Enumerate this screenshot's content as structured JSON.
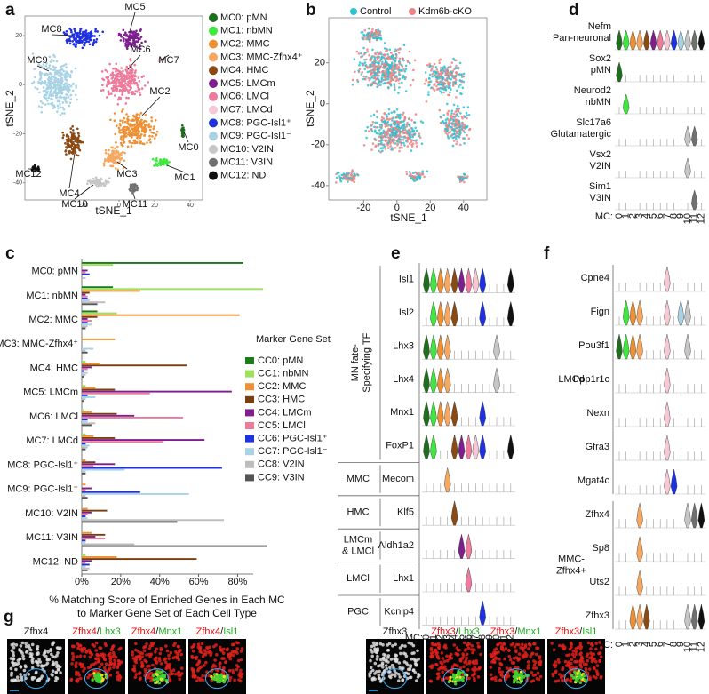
{
  "a": {
    "label": "a",
    "xlabel": "tSNE_1",
    "ylabel": "tSNE_2",
    "xlim": [
      -53,
      47
    ],
    "ylim": [
      -47,
      28
    ],
    "xticks": [
      -20,
      0,
      20,
      40
    ],
    "yticks": [
      20,
      0,
      -20,
      -40
    ],
    "clusters": [
      "MC8",
      "MC5",
      "MC6",
      "MC7",
      "MC9",
      "MC2",
      "MC0",
      "MC1",
      "MC3",
      "MC12",
      "MC4",
      "MC10",
      "MC11"
    ],
    "legend": [
      {
        "name": "MC0: pMN",
        "color": "#1d6e1d"
      },
      {
        "name": "MC1: nbMN",
        "color": "#3fe83f"
      },
      {
        "name": "MC2: MMC",
        "color": "#ee9034"
      },
      {
        "name": "MC3: MMC-Zfhx4⁺",
        "color": "#f4a862"
      },
      {
        "name": "MC4: HMC",
        "color": "#8a4a14"
      },
      {
        "name": "MC5: LMCm",
        "color": "#7d1f8e"
      },
      {
        "name": "MC6: LMCl",
        "color": "#ec7b9c"
      },
      {
        "name": "MC7: LMCd",
        "color": "#f6c8d4"
      },
      {
        "name": "MC8: PGC-Isl1⁺",
        "color": "#1f30e0"
      },
      {
        "name": "MC9: PGC-Isl1⁻",
        "color": "#a9d3e4"
      },
      {
        "name": "MC10: V2IN",
        "color": "#c6c6c6"
      },
      {
        "name": "MC11: V3IN",
        "color": "#707070"
      },
      {
        "name": "MC12: ND",
        "color": "#111111"
      }
    ]
  },
  "b": {
    "label": "b",
    "xlabel": "tSNE_1",
    "ylabel": "tSNE_2",
    "xlim": [
      -41,
      54
    ],
    "ylim": [
      -47,
      42
    ],
    "xticks": [
      -20,
      0,
      20,
      40
    ],
    "yticks": [
      20,
      0,
      -20,
      -40
    ],
    "legend": [
      {
        "name": "Control",
        "color": "#2cc3d3"
      },
      {
        "name": "Kdm6b-cKO",
        "color": "#f08282"
      }
    ]
  },
  "chart_data": {
    "type": "bar",
    "label": "c",
    "orientation": "horizontal",
    "categories": [
      "MC0: pMN",
      "MC1: nbMN",
      "MC2: MMC",
      "MC3: MMC-Zfhx4⁺",
      "MC4: HMC",
      "MC5: LMCm",
      "MC6: LMCl",
      "MC7: LMCd",
      "MC8: PGC-Isl1⁺",
      "MC9: PGC-Isl1⁻",
      "MC10: V2IN",
      "MC11: V3IN",
      "MC12: ND"
    ],
    "legend_title": "Marker Gene Set",
    "xlabel": [
      "% Matching Score of Enriched Genes in Each MC",
      "to Marker Gene Set of Each Cell Type"
    ],
    "xlim": [
      0,
      88
    ],
    "xticks": [
      {
        "value": 0,
        "label": "0%"
      },
      {
        "value": 20,
        "label": "20%"
      },
      {
        "value": 40,
        "label": "40%"
      },
      {
        "value": 60,
        "label": "60%"
      },
      {
        "value": 80,
        "label": "80%"
      }
    ],
    "series": [
      {
        "name": "CC0: pMN",
        "color": "#1d7a1d",
        "values": [
          83,
          16,
          8,
          0,
          0,
          0,
          0,
          0,
          0,
          0,
          0,
          0,
          0
        ]
      },
      {
        "name": "CC1: nbMN",
        "color": "#9fe060",
        "values": [
          16,
          93,
          18,
          0,
          2,
          2,
          1,
          2,
          0,
          0,
          0,
          0,
          2
        ]
      },
      {
        "name": "CC2: MMC",
        "color": "#ee9034",
        "values": [
          0,
          30,
          81,
          17,
          9,
          7,
          5,
          6,
          2,
          2,
          3,
          5,
          18
        ]
      },
      {
        "name": "CC3: HMC",
        "color": "#7a3f10",
        "values": [
          0,
          4,
          8,
          0,
          54,
          17,
          18,
          17,
          7,
          0,
          13,
          12,
          59
        ]
      },
      {
        "name": "CC4: LMCm",
        "color": "#7d1f8e",
        "values": [
          3,
          2,
          3,
          0,
          5,
          77,
          27,
          63,
          17,
          5,
          5,
          7,
          5
        ]
      },
      {
        "name": "CC5: LMCl",
        "color": "#ec7b9c",
        "values": [
          2,
          3,
          5,
          0,
          3,
          35,
          52,
          42,
          6,
          2,
          3,
          12,
          2
        ]
      },
      {
        "name": "CC6: PGC-Isl1⁺",
        "color": "#1f30e0",
        "values": [
          4,
          3,
          3,
          0,
          1,
          3,
          3,
          2,
          72,
          30,
          2,
          2,
          4
        ]
      },
      {
        "name": "CC7: PGC-Isl1⁻",
        "color": "#a9d3e4",
        "values": [
          0,
          4,
          5,
          6,
          3,
          7,
          3,
          4,
          22,
          55,
          3,
          2,
          2
        ]
      },
      {
        "name": "CC8: V2IN",
        "color": "#bdbdbd",
        "values": [
          2,
          12,
          3,
          2,
          2,
          2,
          7,
          3,
          2,
          2,
          73,
          27,
          4
        ]
      },
      {
        "name": "CC9: V3IN",
        "color": "#555555",
        "values": [
          0,
          8,
          2,
          3,
          1,
          1,
          5,
          2,
          2,
          3,
          49,
          95,
          3
        ]
      }
    ]
  },
  "d": {
    "label": "d",
    "mc_label": "MC:",
    "mc": [
      0,
      1,
      2,
      3,
      4,
      5,
      6,
      7,
      8,
      9,
      10,
      11,
      12
    ],
    "rows": [
      {
        "gene": "Nefm",
        "type": "Pan-neuronal"
      },
      {
        "gene": "Sox2",
        "type": "pMN"
      },
      {
        "gene": "Neurod2",
        "type": "nbMN"
      },
      {
        "gene": "Slc17a6",
        "type": "Glutamatergic"
      },
      {
        "gene": "Vsx2",
        "type": "V2IN"
      },
      {
        "gene": "Sim1",
        "type": "V3IN"
      }
    ]
  },
  "e": {
    "label": "e",
    "mc_label": "MC:",
    "mc": [
      0,
      1,
      2,
      3,
      4,
      5,
      6,
      7,
      8,
      9,
      10,
      11,
      12
    ],
    "groups": [
      {
        "name": [
          "MN fate-",
          "Specifying TF"
        ],
        "genes": [
          "Isl1",
          "Isl2",
          "Lhx3",
          "Lhx4",
          "Mnx1",
          "FoxP1"
        ]
      },
      {
        "name": [
          "MMC"
        ],
        "genes": [
          "Mecom"
        ]
      },
      {
        "name": [
          "HMC"
        ],
        "genes": [
          "Klf5"
        ]
      },
      {
        "name": [
          "LMCm",
          "& LMCl"
        ],
        "genes": [
          "Aldh1a2"
        ]
      },
      {
        "name": [
          "LMCl"
        ],
        "genes": [
          "Lhx1"
        ]
      },
      {
        "name": [
          "PGC"
        ],
        "genes": [
          "Kcnip4"
        ]
      }
    ]
  },
  "f": {
    "label": "f",
    "mc_label": "MC:",
    "mc": [
      0,
      1,
      2,
      3,
      4,
      5,
      6,
      7,
      8,
      9,
      10,
      11,
      12
    ],
    "groups": [
      {
        "name": [
          "LMCd"
        ],
        "genes": [
          "Cpne4",
          "Fign",
          "Pou3f1",
          "Ppp1r1c",
          "Nexn",
          "Gfra3",
          "Mgat4c"
        ]
      },
      {
        "name": [
          "MMC-",
          "Zfhx4+"
        ],
        "genes": [
          "Zfhx4",
          "Sp8",
          "Uts2",
          "Zfhx3"
        ]
      }
    ]
  },
  "g": {
    "label": "g",
    "sets": [
      [
        [
          "Zfhx4"
        ],
        [
          "Zfhx4",
          "/",
          "Lhx3"
        ],
        [
          "Zfhx4",
          "/",
          "Mnx1"
        ],
        [
          "Zfhx4",
          "/",
          "Isl1"
        ]
      ],
      [
        [
          "Zfhx3"
        ],
        [
          "Zfhx3",
          "/",
          "Lhx3"
        ],
        [
          "Zfhx3",
          "/",
          "Mnx1"
        ],
        [
          "Zfhx3",
          "/",
          "Isl1"
        ]
      ]
    ]
  }
}
